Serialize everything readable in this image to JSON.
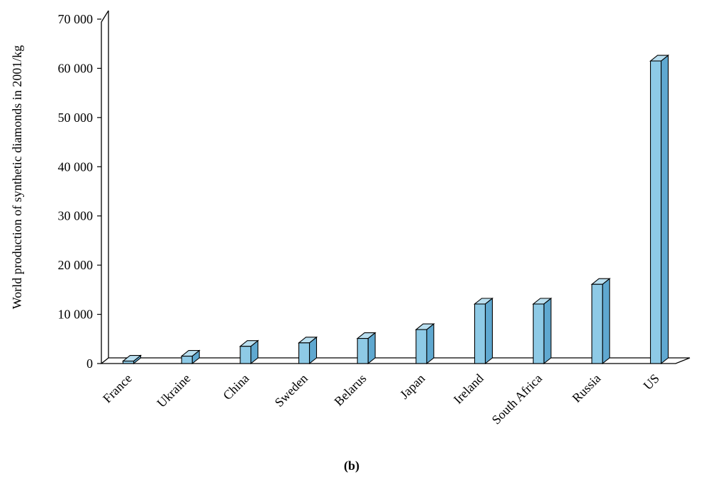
{
  "chart_data": {
    "type": "bar",
    "title": "",
    "ylabel": "World production of synthetic diamonds in 2001/kg",
    "xlabel": "",
    "caption": "(b)",
    "ylim": [
      0,
      70000
    ],
    "yticks": [
      0,
      10000,
      20000,
      30000,
      40000,
      50000,
      60000,
      70000
    ],
    "ytick_labels": [
      "0",
      "10 000",
      "20 000",
      "30 000",
      "40 000",
      "50 000",
      "60 000",
      "70 000"
    ],
    "categories": [
      "France",
      "Ukraine",
      "China",
      "Sweden",
      "Belarus",
      "Japan",
      "Ireland",
      "South Africa",
      "Russia",
      "US"
    ],
    "values": [
      500,
      1500,
      3500,
      4200,
      5100,
      6900,
      12100,
      12100,
      16100,
      61500
    ],
    "colors": {
      "bar_front": "#8ecae6",
      "bar_side": "#5fa8d0",
      "bar_top": "#b9dff0",
      "axis": "#000000"
    },
    "style": "3d-bar",
    "grid": false,
    "legend": "none"
  }
}
